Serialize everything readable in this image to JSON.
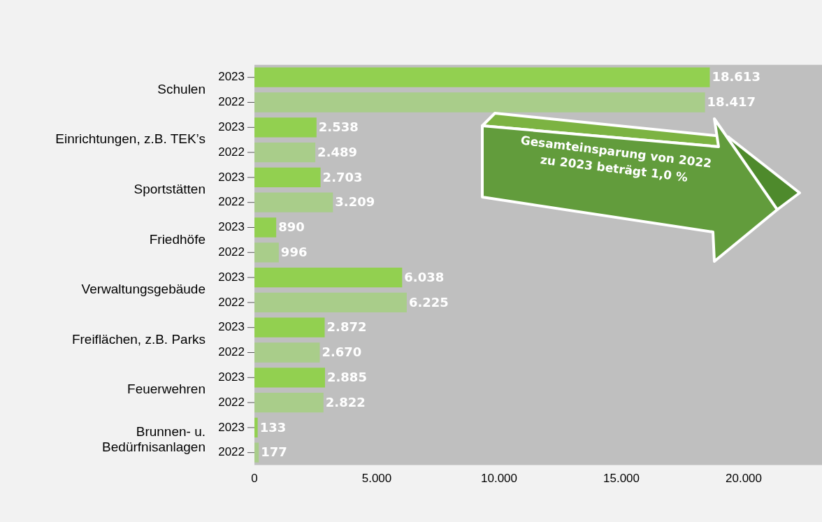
{
  "chart_data": {
    "type": "bar",
    "orientation": "horizontal",
    "legend": false,
    "grid": false,
    "categories": [
      "Schulen",
      "Einrichtungen, z.B. TEK’s",
      "Sportstätten",
      "Friedhöfe",
      "Verwaltungsgebäude",
      "Freiflächen, z.B. Parks",
      "Feuerwehren",
      "Brunnen- u. Bedürfnisanlagen"
    ],
    "series": [
      {
        "name": "2023",
        "color": "#92d050",
        "values": [
          18613,
          2538,
          2703,
          890,
          6038,
          2872,
          2885,
          133
        ],
        "value_labels": [
          "18.613",
          "2.538",
          "2.703",
          "890",
          "6.038",
          "2.872",
          "2.885",
          "133"
        ]
      },
      {
        "name": "2022",
        "color": "#a9cd8a",
        "values": [
          18417,
          2489,
          3209,
          996,
          6225,
          2670,
          2822,
          177
        ],
        "value_labels": [
          "18.417",
          "2.489",
          "3.209",
          "996",
          "6.225",
          "2.670",
          "2.822",
          "177"
        ]
      }
    ],
    "xlim": [
      0,
      23200
    ],
    "xticks": [
      0,
      {
        "value": 5000,
        "label": "5.000"
      },
      {
        "value": 10000,
        "label": "10.000"
      },
      {
        "value": 15000,
        "label": "15.000"
      },
      {
        "value": 20000,
        "label": "20.000"
      }
    ],
    "annotations": [
      "Gesamteinsparung von 2022 zu 2023 beträgt 1,0 %"
    ]
  }
}
